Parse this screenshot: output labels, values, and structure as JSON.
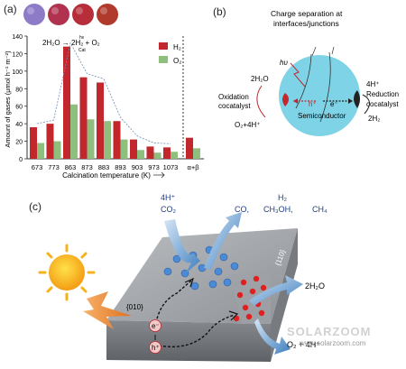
{
  "panel_a": {
    "letter": "(a)",
    "reaction": "2H₂O → 2H₂ + O₂",
    "reaction_over": "hν",
    "reaction_under": "Cat",
    "sphere_colors": [
      "#8e7bc7",
      "#b1324f",
      "#b72e3a",
      "#b03a2c"
    ]
  },
  "chart_data": {
    "type": "bar",
    "xlabel": "Calcination temperature (K)",
    "ylabel": "Amount of gases (μmol h⁻¹ m⁻²)",
    "ylim": [
      0,
      140
    ],
    "yticks": [
      0,
      20,
      40,
      60,
      80,
      100,
      120,
      140
    ],
    "categories": [
      "673",
      "773",
      "863",
      "873",
      "883",
      "893",
      "903",
      "973",
      "1073",
      "α+β"
    ],
    "series": [
      {
        "name": "H₂",
        "color": "#c1272d",
        "values": [
          36,
          40,
          128,
          93,
          87,
          43,
          22,
          14,
          13,
          24
        ]
      },
      {
        "name": "O₂",
        "color": "#8fbf7f",
        "values": [
          18,
          20,
          62,
          45,
          43,
          22,
          10,
          7,
          8,
          12
        ]
      }
    ],
    "trend_line": "dashed envelope over bars",
    "legend_position": "top-right"
  },
  "panel_b": {
    "letter": "(b)",
    "title_line1": "Charge separation at",
    "title_line2": "interfaces/junctions",
    "hv": "hυ",
    "h2o": "2H₂O",
    "ox_line1": "Oxidation",
    "ox_line2": "cocatalyst",
    "o2": "O₂+4H⁺",
    "hole": "h⁺",
    "electron": "e⁻",
    "semi": "Semiconductor",
    "h4": "4H⁺",
    "red_line1": "Reduction",
    "red_line2": "cocatalyst",
    "h2": "2H₂",
    "sphere_color": "#7fd3e6"
  },
  "panel_c": {
    "letter": "(c)",
    "h4": "4H⁺",
    "co2_in": "CO₂",
    "co": "CO,",
    "h2": "H₂",
    "ch3oh": "CH₃OH,",
    "ch4": "CH₄",
    "facet_010": "{010}",
    "facet_110": "{110}",
    "electron": "e⁻",
    "hole": "h⁺",
    "h2o": "2H₂O",
    "o2": "O₂ + 4H⁺"
  },
  "watermark": {
    "brand": "SOLARZOOM",
    "url": "www.solarzoom.com"
  }
}
